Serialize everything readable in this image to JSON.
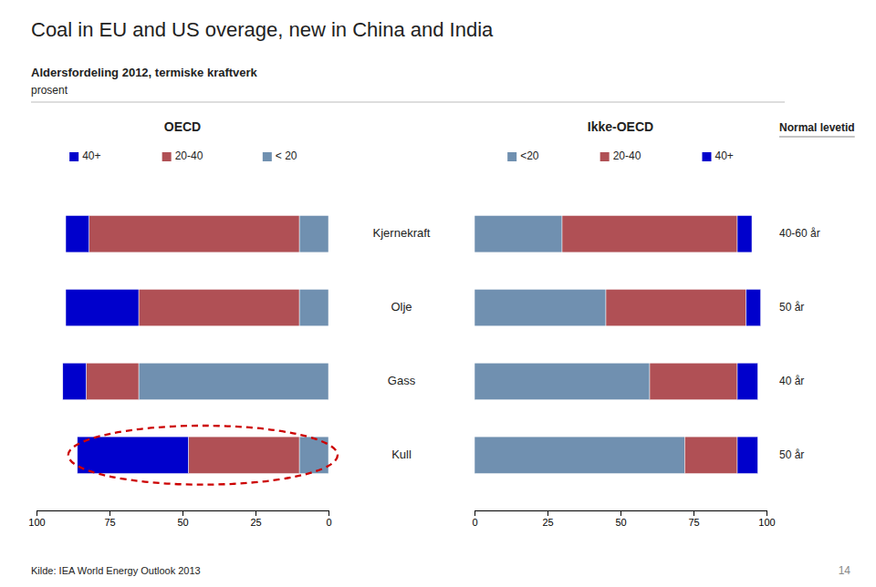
{
  "title": "Coal in EU and US overage, new in China and India",
  "subtitle": [
    "Aldersfordeling 2012, termiske kraftverk",
    "prosent"
  ],
  "source": "Kilde: IEA World Energy Outlook 2013",
  "page_number": "14",
  "chart_data": [
    {
      "type": "bar",
      "orientation": "horizontal",
      "stacked": true,
      "legend": "top",
      "title": "OECD",
      "categories": [
        "Kjernekraft",
        "Olje",
        "Gass",
        "Kull"
      ],
      "series": [
        {
          "name": "< 20",
          "color": "#7090B0",
          "values": [
            10,
            10,
            65,
            10
          ]
        },
        {
          "name": "20-40",
          "color": "#B05055",
          "values": [
            72,
            55,
            18,
            38
          ]
        },
        {
          "name": "40+",
          "color": "#0000CC",
          "values": [
            8,
            25,
            8,
            38
          ]
        }
      ],
      "xlim": [
        100,
        0
      ],
      "xticks": [
        100,
        75,
        50,
        25,
        0
      ],
      "annotations": [
        {
          "shape": "ellipse",
          "category": "Kull",
          "color": "#CC0000"
        }
      ]
    },
    {
      "type": "bar",
      "orientation": "horizontal",
      "stacked": true,
      "legend": "top",
      "title": "Ikke-OECD",
      "categories": [
        "Kjernekraft",
        "Olje",
        "Gass",
        "Kull"
      ],
      "series": [
        {
          "name": "<20",
          "color": "#7090B0",
          "values": [
            30,
            45,
            60,
            72
          ]
        },
        {
          "name": "20-40",
          "color": "#B05055",
          "values": [
            60,
            48,
            30,
            18
          ]
        },
        {
          "name": "40+",
          "color": "#0000CC",
          "values": [
            5,
            5,
            7,
            7
          ]
        }
      ],
      "xlim": [
        0,
        100
      ],
      "xticks": [
        0,
        25,
        50,
        75,
        100
      ],
      "annotations": [
        {
          "title": "Normal levetid",
          "labels": [
            "40-60 år",
            "50 år",
            "40 år",
            "50 år"
          ]
        }
      ]
    }
  ]
}
